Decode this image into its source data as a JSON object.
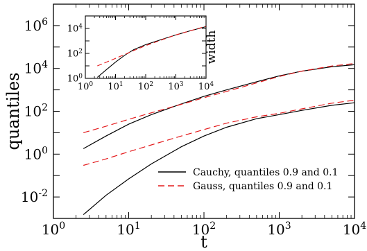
{
  "chart_data": [
    {
      "id": "main",
      "type": "line",
      "xscale": "log",
      "yscale": "log",
      "xlabel": "t",
      "ylabel": "quantiles",
      "xlim": [
        1,
        10000
      ],
      "ylim": [
        0.001,
        10000000
      ],
      "x_ticks": [
        {
          "value": 1,
          "base": "10",
          "exp": "0"
        },
        {
          "value": 10,
          "base": "10",
          "exp": "1"
        },
        {
          "value": 100,
          "base": "10",
          "exp": "2"
        },
        {
          "value": 1000,
          "base": "10",
          "exp": "3"
        },
        {
          "value": 10000,
          "base": "10",
          "exp": "4"
        }
      ],
      "y_ticks": [
        {
          "value": 0.01,
          "base": "10",
          "exp": "-2"
        },
        {
          "value": 1,
          "base": "10",
          "exp": "0"
        },
        {
          "value": 100,
          "base": "10",
          "exp": "2"
        },
        {
          "value": 10000,
          "base": "10",
          "exp": "4"
        },
        {
          "value": 1000000,
          "base": "10",
          "exp": "6"
        }
      ],
      "legend": {
        "placement": "bottom-right",
        "entries": [
          {
            "label": "Cauchy, quantiles 0.9 and 0.1",
            "color": "#000000",
            "style": "solid"
          },
          {
            "label": "Gauss,   quantiles 0.9 and 0.1",
            "color": "#e41a1c",
            "style": "dashed"
          }
        ]
      },
      "series": [
        {
          "group": "Cauchy",
          "quantile": 0.9,
          "color": "#000000",
          "style": "solid",
          "x": [
            2.5,
            5,
            10,
            20,
            50,
            100,
            200,
            500,
            1000,
            2000,
            5000,
            10000
          ],
          "y": [
            1.8,
            7,
            25,
            70,
            220,
            500,
            1000,
            2400,
            4500,
            7500,
            12000,
            15000
          ]
        },
        {
          "group": "Cauchy",
          "quantile": 0.1,
          "color": "#000000",
          "style": "solid",
          "x": [
            2.5,
            5,
            10,
            20,
            50,
            100,
            200,
            500,
            1000,
            2000,
            5000,
            10000
          ],
          "y": [
            0.0015,
            0.012,
            0.07,
            0.35,
            2.2,
            7,
            18,
            45,
            70,
            110,
            190,
            250
          ]
        },
        {
          "group": "Gauss",
          "quantile": 0.9,
          "color": "#e41a1c",
          "style": "dashed",
          "x": [
            2.5,
            5,
            10,
            20,
            50,
            100,
            200,
            500,
            1000,
            2000,
            5000,
            10000
          ],
          "y": [
            10,
            20,
            42,
            85,
            210,
            430,
            850,
            2100,
            4200,
            7500,
            13000,
            17000
          ]
        },
        {
          "group": "Gauss",
          "quantile": 0.1,
          "color": "#e41a1c",
          "style": "dashed",
          "x": [
            2.5,
            5,
            10,
            20,
            50,
            100,
            200,
            500,
            1000,
            2000,
            5000,
            10000
          ],
          "y": [
            0.3,
            0.6,
            1.3,
            2.7,
            7,
            14,
            28,
            55,
            80,
            130,
            240,
            330
          ]
        }
      ]
    },
    {
      "id": "inset",
      "type": "line",
      "xscale": "log",
      "yscale": "log",
      "xlabel": "",
      "ylabel": "width",
      "xlim": [
        1,
        10000
      ],
      "ylim": [
        1,
        100000
      ],
      "x_ticks": [
        {
          "value": 1,
          "base": "10",
          "exp": "0"
        },
        {
          "value": 10,
          "base": "10",
          "exp": "1"
        },
        {
          "value": 100,
          "base": "10",
          "exp": "2"
        },
        {
          "value": 1000,
          "base": "10",
          "exp": "3"
        },
        {
          "value": 10000,
          "base": "10",
          "exp": "4"
        }
      ],
      "y_ticks": [
        {
          "value": 1,
          "base": "10",
          "exp": "0"
        },
        {
          "value": 100,
          "base": "10",
          "exp": "2"
        },
        {
          "value": 10000,
          "base": "10",
          "exp": "4"
        }
      ],
      "series": [
        {
          "group": "Cauchy",
          "color": "#000000",
          "style": "solid",
          "x": [
            2.5,
            5,
            10,
            20,
            40,
            100,
            300,
            1000,
            3000,
            10000
          ],
          "y": [
            1.2,
            5,
            20,
            70,
            200,
            500,
            1200,
            3000,
            6500,
            14000
          ]
        },
        {
          "group": "Gauss",
          "color": "#e41a1c",
          "style": "dashed",
          "x": [
            2.5,
            5,
            10,
            20,
            40,
            100,
            300,
            1000,
            3000,
            10000
          ],
          "y": [
            10,
            20,
            40,
            80,
            170,
            420,
            1100,
            3000,
            6500,
            15000
          ]
        }
      ]
    }
  ]
}
